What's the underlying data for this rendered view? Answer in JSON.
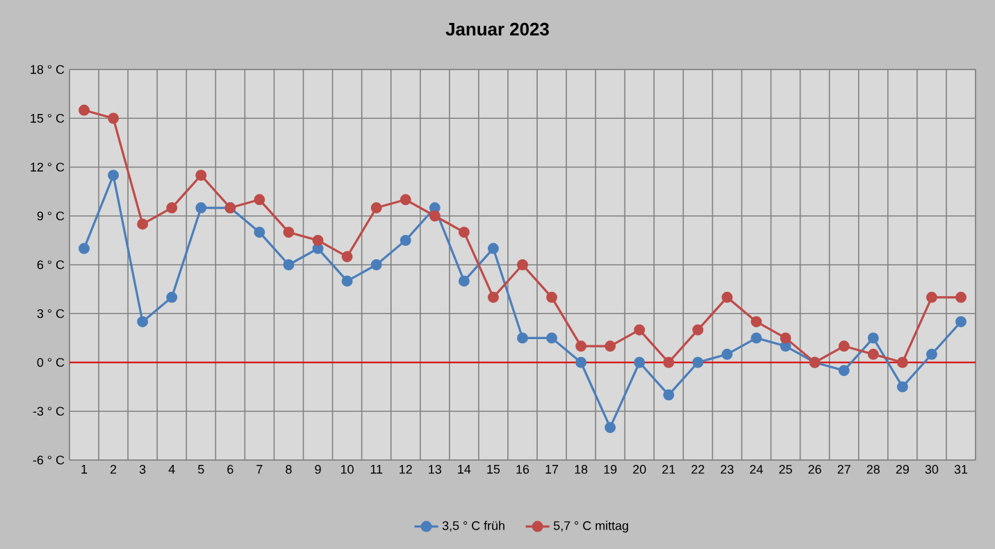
{
  "chart_data": {
    "type": "line",
    "title": "Januar 2023",
    "categories": [
      "1",
      "2",
      "3",
      "4",
      "5",
      "6",
      "7",
      "8",
      "9",
      "10",
      "11",
      "12",
      "13",
      "14",
      "15",
      "16",
      "17",
      "18",
      "19",
      "20",
      "21",
      "22",
      "23",
      "24",
      "25",
      "26",
      "27",
      "28",
      "29",
      "30",
      "31"
    ],
    "series": [
      {
        "name": "3,5 ° C früh",
        "color": "#4a7ebb",
        "values": [
          7,
          11.5,
          2.5,
          4,
          9.5,
          9.5,
          8,
          6,
          7,
          5,
          6,
          7.5,
          9.5,
          5,
          7,
          1.5,
          1.5,
          0,
          -4,
          0,
          -2,
          0,
          0.5,
          1.5,
          1,
          0,
          -0.5,
          1.5,
          -1.5,
          0.5,
          2.5
        ]
      },
      {
        "name": "5,7 ° C mittag",
        "color": "#be4b48",
        "values": [
          15.5,
          15,
          8.5,
          9.5,
          11.5,
          9.5,
          10,
          8,
          7.5,
          6.5,
          9.5,
          10,
          9,
          8,
          4,
          6,
          4,
          1,
          1,
          2,
          0,
          2,
          4,
          2.5,
          1.5,
          0,
          1,
          0.5,
          0,
          4,
          4
        ]
      }
    ],
    "ylim": [
      -6,
      18
    ],
    "yticks": [
      {
        "value": -6,
        "label": "-6 ° C"
      },
      {
        "value": -3,
        "label": "-3 ° C"
      },
      {
        "value": 0,
        "label": "0 ° C"
      },
      {
        "value": 3,
        "label": "3 ° C"
      },
      {
        "value": 6,
        "label": "6 ° C"
      },
      {
        "value": 9,
        "label": "9 ° C"
      },
      {
        "value": 12,
        "label": "12 ° C"
      },
      {
        "value": 15,
        "label": "15 ° C"
      },
      {
        "value": 18,
        "label": "18 ° C"
      }
    ],
    "ref_lines": [
      {
        "axis": "y",
        "value": 0,
        "color": "#e00000"
      }
    ],
    "grid": true,
    "legend": "bottom",
    "marker": "circle",
    "line_style": "solid"
  }
}
